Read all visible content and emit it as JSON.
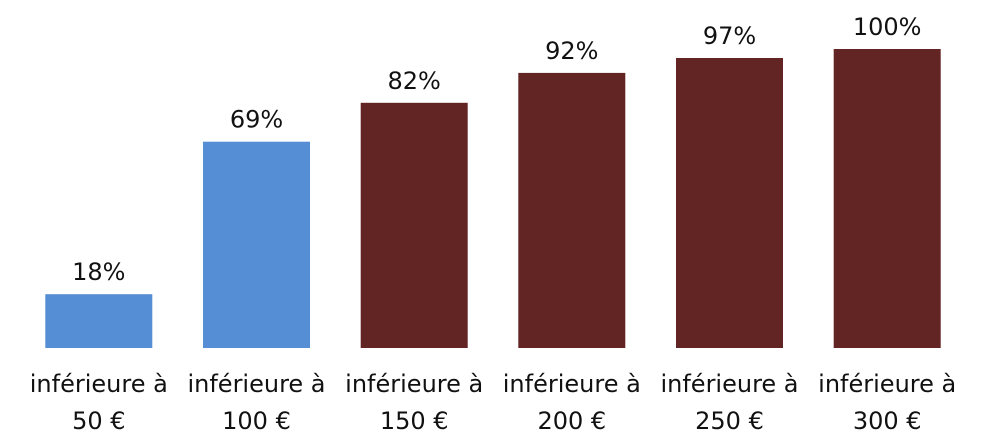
{
  "chart_data": {
    "type": "bar",
    "categories": [
      [
        "inférieure à",
        "50 €"
      ],
      [
        "inférieure à",
        "100 €"
      ],
      [
        "inférieure à",
        "150 €"
      ],
      [
        "inférieure à",
        "200 €"
      ],
      [
        "inférieure à",
        "250 €"
      ],
      [
        "inférieure à",
        "300 €"
      ]
    ],
    "values": [
      18,
      69,
      82,
      92,
      97,
      100
    ],
    "data_labels": [
      "18%",
      "69%",
      "82%",
      "92%",
      "97%",
      "100%"
    ],
    "bar_colors": [
      "#558ed5",
      "#558ed5",
      "#632523",
      "#632523",
      "#632523",
      "#632523"
    ],
    "title": "",
    "xlabel": "",
    "ylabel": "",
    "ylim": [
      0,
      100
    ],
    "grid": false,
    "legend": "none"
  }
}
